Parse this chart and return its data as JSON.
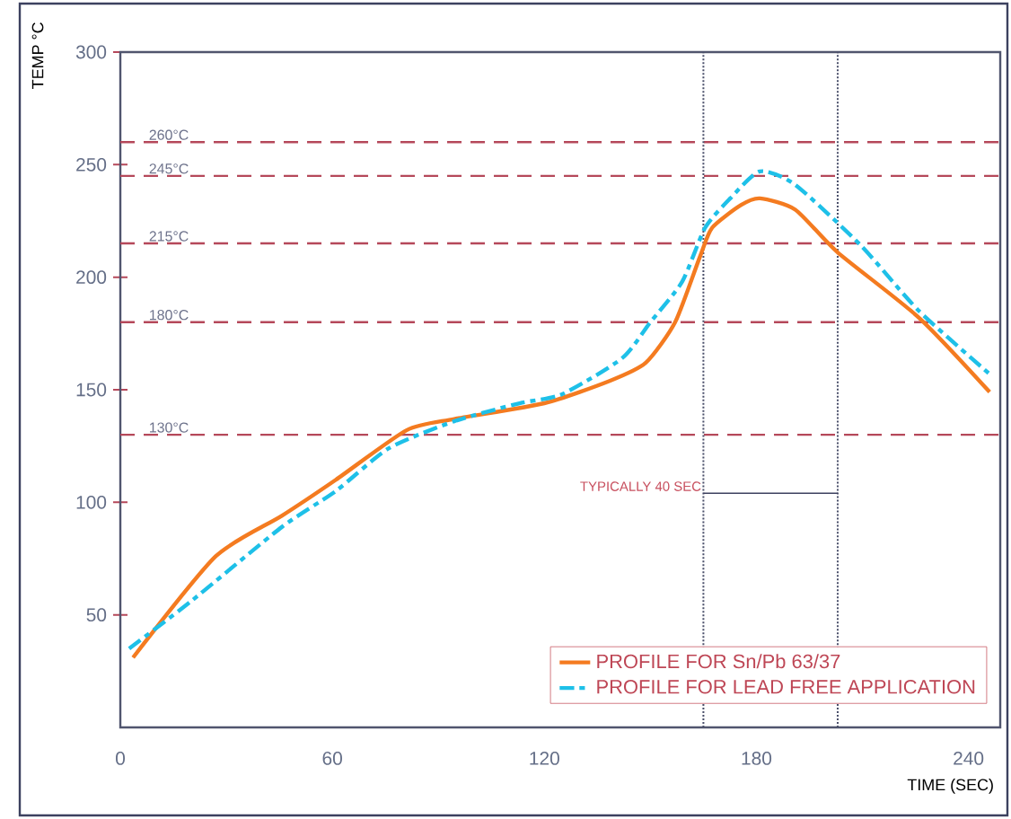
{
  "chart_data": {
    "type": "line",
    "xlabel": "TIME (SEC)",
    "ylabel": "TEMP °C",
    "xlim": [
      0,
      249
    ],
    "ylim": [
      0,
      300
    ],
    "xticks": [
      0,
      60,
      120,
      180,
      240
    ],
    "yticks": [
      50,
      100,
      150,
      200,
      250,
      300
    ],
    "grid": false,
    "legend": "bottom right",
    "marker": "none",
    "series": [
      {
        "name": "PROFILE FOR Sn/Pb 63/37",
        "color": "#f47b20",
        "line_style": "solid",
        "x": [
          3.6,
          27,
          45.7,
          61,
          81,
          94.5,
          120,
          138.6,
          148.7,
          157,
          164,
          167.5,
          175.6,
          181,
          191,
          203,
          226,
          246
        ],
        "values": [
          31,
          76,
          94,
          110,
          132,
          137,
          144,
          154,
          162,
          180,
          209,
          222,
          232,
          235,
          230,
          211,
          182,
          149
        ]
      },
      {
        "name": "PROFILE FOR LEAD FREE APPLICATION",
        "color": "#1ec0e8",
        "line_style": "dashed",
        "x": [
          2.5,
          20,
          45.7,
          61,
          76,
          94.5,
          113,
          125,
          142,
          150,
          159,
          165.5,
          172.6,
          181,
          191,
          209.6,
          226,
          246.7
        ],
        "values": [
          35,
          56,
          89,
          105,
          124,
          136,
          144,
          148,
          164,
          180,
          198,
          222,
          235,
          247,
          241,
          214,
          185,
          156
        ]
      }
    ],
    "ref_lines": [
      {
        "axis": "y",
        "value": 260,
        "label": "260°C",
        "color": "#b5485a",
        "line_style": "dashed"
      },
      {
        "axis": "y",
        "value": 245,
        "label": "245°C",
        "color": "#b5485a",
        "line_style": "dashed"
      },
      {
        "axis": "y",
        "value": 215,
        "label": "215°C",
        "color": "#b5485a",
        "line_style": "dashed"
      },
      {
        "axis": "y",
        "value": 180,
        "label": "180°C",
        "color": "#b5485a",
        "line_style": "dashed"
      },
      {
        "axis": "y",
        "value": 130,
        "label": "130°C",
        "color": "#b5485a",
        "line_style": "dashed"
      },
      {
        "axis": "x",
        "value": 165,
        "label": null,
        "color": "#4a4f6a",
        "line_style": "dotted"
      },
      {
        "axis": "x",
        "value": 203,
        "label": null,
        "color": "#4a4f6a",
        "line_style": "dotted"
      }
    ],
    "annotations": [
      {
        "text": "TYPICALLY 40 SEC",
        "x": 165,
        "y": 104
      }
    ]
  }
}
